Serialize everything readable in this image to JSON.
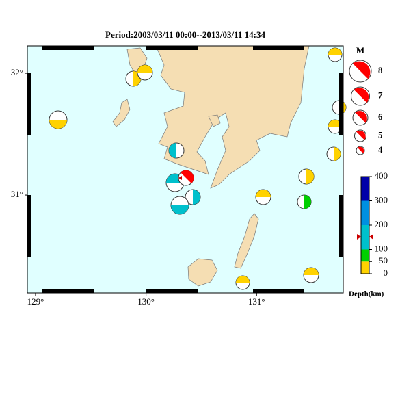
{
  "title": "Period:2003/03/11 00:00--2013/03/11 14:34",
  "map": {
    "xlim": [
      128.926,
      131.784
    ],
    "ylim": [
      30.197,
      32.225
    ],
    "xticks": [
      {
        "value": 129,
        "label": "129°"
      },
      {
        "value": 130,
        "label": "130°"
      },
      {
        "value": 131,
        "label": "131°"
      }
    ],
    "yticks": [
      {
        "value": 31,
        "label": "31°"
      },
      {
        "value": 32,
        "label": "32°"
      }
    ]
  },
  "magnitude_legend": {
    "title": "M",
    "values": [
      8,
      7,
      6,
      5,
      4
    ]
  },
  "depth_scale": {
    "label": "Depth(km)",
    "lim": [
      0,
      400
    ],
    "ticks": [
      0,
      50,
      100,
      200,
      300,
      400
    ],
    "colors": [
      "#ffd200",
      "#00d000",
      "#00c0cc",
      "#0090e0",
      "#0000a8"
    ]
  }
}
